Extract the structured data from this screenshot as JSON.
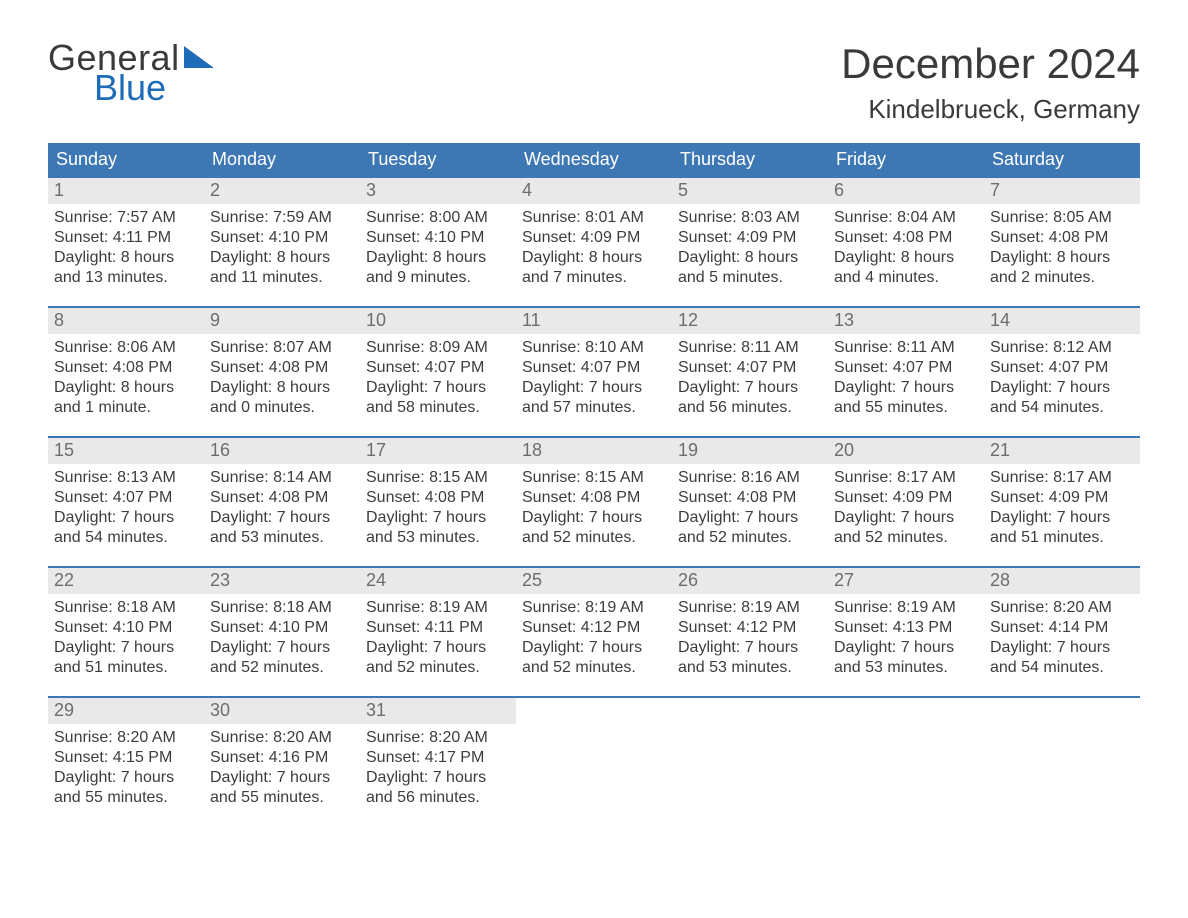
{
  "brand": {
    "word1": "General",
    "word2": "Blue",
    "accent_hex": "#1e6bb8"
  },
  "title": "December 2024",
  "location": "Kindelbrueck, Germany",
  "colors": {
    "header_bg": "#3d78b4",
    "header_text": "#ffffff",
    "daynum_bg": "#e9e9e9",
    "daynum_text": "#6d6d6d",
    "body_text": "#3d3d3d",
    "week_rule": "#3d78b4",
    "page_bg": "#ffffff"
  },
  "fonts": {
    "title_pt": 42,
    "location_pt": 26,
    "dow_pt": 18,
    "daynum_pt": 18,
    "body_pt": 16
  },
  "day_names": [
    "Sunday",
    "Monday",
    "Tuesday",
    "Wednesday",
    "Thursday",
    "Friday",
    "Saturday"
  ],
  "weeks": [
    [
      {
        "n": "1",
        "sunrise": "Sunrise: 7:57 AM",
        "sunset": "Sunset: 4:11 PM",
        "dl1": "Daylight: 8 hours",
        "dl2": "and 13 minutes."
      },
      {
        "n": "2",
        "sunrise": "Sunrise: 7:59 AM",
        "sunset": "Sunset: 4:10 PM",
        "dl1": "Daylight: 8 hours",
        "dl2": "and 11 minutes."
      },
      {
        "n": "3",
        "sunrise": "Sunrise: 8:00 AM",
        "sunset": "Sunset: 4:10 PM",
        "dl1": "Daylight: 8 hours",
        "dl2": "and 9 minutes."
      },
      {
        "n": "4",
        "sunrise": "Sunrise: 8:01 AM",
        "sunset": "Sunset: 4:09 PM",
        "dl1": "Daylight: 8 hours",
        "dl2": "and 7 minutes."
      },
      {
        "n": "5",
        "sunrise": "Sunrise: 8:03 AM",
        "sunset": "Sunset: 4:09 PM",
        "dl1": "Daylight: 8 hours",
        "dl2": "and 5 minutes."
      },
      {
        "n": "6",
        "sunrise": "Sunrise: 8:04 AM",
        "sunset": "Sunset: 4:08 PM",
        "dl1": "Daylight: 8 hours",
        "dl2": "and 4 minutes."
      },
      {
        "n": "7",
        "sunrise": "Sunrise: 8:05 AM",
        "sunset": "Sunset: 4:08 PM",
        "dl1": "Daylight: 8 hours",
        "dl2": "and 2 minutes."
      }
    ],
    [
      {
        "n": "8",
        "sunrise": "Sunrise: 8:06 AM",
        "sunset": "Sunset: 4:08 PM",
        "dl1": "Daylight: 8 hours",
        "dl2": "and 1 minute."
      },
      {
        "n": "9",
        "sunrise": "Sunrise: 8:07 AM",
        "sunset": "Sunset: 4:08 PM",
        "dl1": "Daylight: 8 hours",
        "dl2": "and 0 minutes."
      },
      {
        "n": "10",
        "sunrise": "Sunrise: 8:09 AM",
        "sunset": "Sunset: 4:07 PM",
        "dl1": "Daylight: 7 hours",
        "dl2": "and 58 minutes."
      },
      {
        "n": "11",
        "sunrise": "Sunrise: 8:10 AM",
        "sunset": "Sunset: 4:07 PM",
        "dl1": "Daylight: 7 hours",
        "dl2": "and 57 minutes."
      },
      {
        "n": "12",
        "sunrise": "Sunrise: 8:11 AM",
        "sunset": "Sunset: 4:07 PM",
        "dl1": "Daylight: 7 hours",
        "dl2": "and 56 minutes."
      },
      {
        "n": "13",
        "sunrise": "Sunrise: 8:11 AM",
        "sunset": "Sunset: 4:07 PM",
        "dl1": "Daylight: 7 hours",
        "dl2": "and 55 minutes."
      },
      {
        "n": "14",
        "sunrise": "Sunrise: 8:12 AM",
        "sunset": "Sunset: 4:07 PM",
        "dl1": "Daylight: 7 hours",
        "dl2": "and 54 minutes."
      }
    ],
    [
      {
        "n": "15",
        "sunrise": "Sunrise: 8:13 AM",
        "sunset": "Sunset: 4:07 PM",
        "dl1": "Daylight: 7 hours",
        "dl2": "and 54 minutes."
      },
      {
        "n": "16",
        "sunrise": "Sunrise: 8:14 AM",
        "sunset": "Sunset: 4:08 PM",
        "dl1": "Daylight: 7 hours",
        "dl2": "and 53 minutes."
      },
      {
        "n": "17",
        "sunrise": "Sunrise: 8:15 AM",
        "sunset": "Sunset: 4:08 PM",
        "dl1": "Daylight: 7 hours",
        "dl2": "and 53 minutes."
      },
      {
        "n": "18",
        "sunrise": "Sunrise: 8:15 AM",
        "sunset": "Sunset: 4:08 PM",
        "dl1": "Daylight: 7 hours",
        "dl2": "and 52 minutes."
      },
      {
        "n": "19",
        "sunrise": "Sunrise: 8:16 AM",
        "sunset": "Sunset: 4:08 PM",
        "dl1": "Daylight: 7 hours",
        "dl2": "and 52 minutes."
      },
      {
        "n": "20",
        "sunrise": "Sunrise: 8:17 AM",
        "sunset": "Sunset: 4:09 PM",
        "dl1": "Daylight: 7 hours",
        "dl2": "and 52 minutes."
      },
      {
        "n": "21",
        "sunrise": "Sunrise: 8:17 AM",
        "sunset": "Sunset: 4:09 PM",
        "dl1": "Daylight: 7 hours",
        "dl2": "and 51 minutes."
      }
    ],
    [
      {
        "n": "22",
        "sunrise": "Sunrise: 8:18 AM",
        "sunset": "Sunset: 4:10 PM",
        "dl1": "Daylight: 7 hours",
        "dl2": "and 51 minutes."
      },
      {
        "n": "23",
        "sunrise": "Sunrise: 8:18 AM",
        "sunset": "Sunset: 4:10 PM",
        "dl1": "Daylight: 7 hours",
        "dl2": "and 52 minutes."
      },
      {
        "n": "24",
        "sunrise": "Sunrise: 8:19 AM",
        "sunset": "Sunset: 4:11 PM",
        "dl1": "Daylight: 7 hours",
        "dl2": "and 52 minutes."
      },
      {
        "n": "25",
        "sunrise": "Sunrise: 8:19 AM",
        "sunset": "Sunset: 4:12 PM",
        "dl1": "Daylight: 7 hours",
        "dl2": "and 52 minutes."
      },
      {
        "n": "26",
        "sunrise": "Sunrise: 8:19 AM",
        "sunset": "Sunset: 4:12 PM",
        "dl1": "Daylight: 7 hours",
        "dl2": "and 53 minutes."
      },
      {
        "n": "27",
        "sunrise": "Sunrise: 8:19 AM",
        "sunset": "Sunset: 4:13 PM",
        "dl1": "Daylight: 7 hours",
        "dl2": "and 53 minutes."
      },
      {
        "n": "28",
        "sunrise": "Sunrise: 8:20 AM",
        "sunset": "Sunset: 4:14 PM",
        "dl1": "Daylight: 7 hours",
        "dl2": "and 54 minutes."
      }
    ],
    [
      {
        "n": "29",
        "sunrise": "Sunrise: 8:20 AM",
        "sunset": "Sunset: 4:15 PM",
        "dl1": "Daylight: 7 hours",
        "dl2": "and 55 minutes."
      },
      {
        "n": "30",
        "sunrise": "Sunrise: 8:20 AM",
        "sunset": "Sunset: 4:16 PM",
        "dl1": "Daylight: 7 hours",
        "dl2": "and 55 minutes."
      },
      {
        "n": "31",
        "sunrise": "Sunrise: 8:20 AM",
        "sunset": "Sunset: 4:17 PM",
        "dl1": "Daylight: 7 hours",
        "dl2": "and 56 minutes."
      },
      {
        "empty": true
      },
      {
        "empty": true
      },
      {
        "empty": true
      },
      {
        "empty": true
      }
    ]
  ]
}
